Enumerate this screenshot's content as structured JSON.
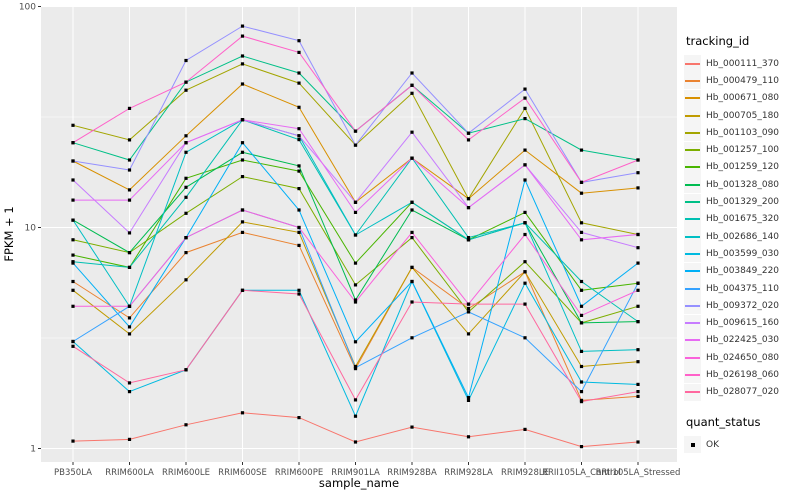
{
  "chart_data": {
    "type": "line",
    "title": "",
    "xlabel": "sample_name",
    "ylabel": "FPKM + 1",
    "y_scale": "log10",
    "ylim": [
      0.9,
      100
    ],
    "y_ticks": [
      1,
      10,
      100
    ],
    "y_minor_ticks": [
      3.1623,
      31.623
    ],
    "grid": true,
    "legend_position": "right",
    "legend_title": "tracking_id",
    "marker": "black-square",
    "categories": [
      "PB350LA",
      "RRIM600LA",
      "RRIM600LE",
      "RRIM600SE",
      "RRIM600PE",
      "RRIM901LA",
      "RRIM928BA",
      "RRIM928LA",
      "RRIM928LE",
      "RRII105LA_Control",
      "RRII105LA_Stressed"
    ],
    "series": [
      {
        "name": "Hb_000111_370",
        "color": "#F8766D",
        "values": [
          1.08,
          1.1,
          1.28,
          1.45,
          1.38,
          1.07,
          1.25,
          1.13,
          1.22,
          1.02,
          1.07
        ]
      },
      {
        "name": "Hb_000479_110",
        "color": "#EA8331",
        "values": [
          5.7,
          3.9,
          7.7,
          9.5,
          8.3,
          2.3,
          6.6,
          4.3,
          6.3,
          1.65,
          1.72
        ]
      },
      {
        "name": "Hb_000671_080",
        "color": "#D89000",
        "values": [
          20,
          14.8,
          26,
          44.6,
          35,
          13.0,
          20.6,
          13.5,
          22.4,
          14.3,
          15.1
        ]
      },
      {
        "name": "Hb_000705_180",
        "color": "#C09B00",
        "values": [
          5.2,
          3.3,
          5.8,
          10.6,
          9.5,
          2.35,
          6.6,
          3.3,
          6.3,
          2.35,
          2.47
        ]
      },
      {
        "name": "Hb_001103_090",
        "color": "#A3A500",
        "values": [
          29,
          24.9,
          41.8,
          55,
          45,
          23.6,
          40.5,
          13.5,
          34.6,
          10.5,
          9.3
        ]
      },
      {
        "name": "Hb_001257_100",
        "color": "#7CAE00",
        "values": [
          8.8,
          7.7,
          11.6,
          17,
          15,
          5.5,
          9.0,
          4.15,
          7.0,
          3.7,
          4.4
        ]
      },
      {
        "name": "Hb_001259_120",
        "color": "#49B500",
        "values": [
          7.5,
          6.6,
          16.7,
          20.2,
          18,
          6.9,
          13.0,
          8.8,
          11.7,
          5.2,
          5.6
        ]
      },
      {
        "name": "Hb_001328_080",
        "color": "#00BC51",
        "values": [
          10.8,
          7.7,
          15.2,
          21.9,
          19,
          4.7,
          12.0,
          8.8,
          10.5,
          3.7,
          3.75
        ]
      },
      {
        "name": "Hb_001329_200",
        "color": "#00C087",
        "values": [
          24.2,
          20.2,
          45.5,
          59.7,
          50,
          27.3,
          44,
          26.7,
          31.1,
          22.4,
          20.2
        ]
      },
      {
        "name": "Hb_001675_320",
        "color": "#00C0B2",
        "values": [
          7.0,
          6.6,
          13.7,
          30.7,
          25,
          9.25,
          20.6,
          9.0,
          10.5,
          5.7,
          3.75
        ]
      },
      {
        "name": "Hb_002686_140",
        "color": "#00BFC4",
        "values": [
          10.8,
          4.4,
          21.9,
          30.7,
          26,
          9.25,
          13.0,
          8.8,
          10.5,
          2.75,
          2.8
        ]
      },
      {
        "name": "Hb_003599_030",
        "color": "#00BAE0",
        "values": [
          3.05,
          1.81,
          2.27,
          5.2,
          5.2,
          1.4,
          5.7,
          1.65,
          5.6,
          2.0,
          1.95
        ]
      },
      {
        "name": "Hb_003849_220",
        "color": "#00B0F6",
        "values": [
          6.9,
          3.55,
          9.0,
          24.2,
          12,
          3.04,
          5.7,
          1.7,
          16.4,
          4.4,
          6.9
        ]
      },
      {
        "name": "Hb_004375_110",
        "color": "#35A2FF",
        "values": [
          3.05,
          4.4,
          9.0,
          12,
          10,
          2.32,
          3.17,
          4.15,
          3.17,
          1.81,
          5.6
        ]
      },
      {
        "name": "Hb_009372_020",
        "color": "#9590FF",
        "values": [
          20,
          18.2,
          57,
          81.5,
          70,
          23.6,
          50,
          26.7,
          42.3,
          16,
          17.7
        ]
      },
      {
        "name": "Hb_009615_160",
        "color": "#C77CFF",
        "values": [
          16.4,
          9.45,
          24.2,
          30.7,
          26,
          13.0,
          27,
          12.3,
          19.2,
          9.5,
          8.1
        ]
      },
      {
        "name": "Hb_022425_030",
        "color": "#E76BF3",
        "values": [
          13.3,
          13.3,
          24.2,
          30.7,
          28,
          11.7,
          20.6,
          12.3,
          19.2,
          8.8,
          9.3
        ]
      },
      {
        "name": "Hb_024650_080",
        "color": "#FA62DB",
        "values": [
          4.4,
          4.4,
          9.0,
          12,
          10,
          4.6,
          9.5,
          4.5,
          9.3,
          4.0,
          5.2
        ]
      },
      {
        "name": "Hb_026198_060",
        "color": "#FF61C9",
        "values": [
          24.2,
          34.6,
          45.5,
          73.5,
          62,
          27.3,
          44,
          24.9,
          38.5,
          16,
          20.2
        ]
      },
      {
        "name": "Hb_028077_020",
        "color": "#FF689F",
        "values": [
          2.9,
          1.98,
          2.27,
          5.2,
          5.0,
          1.66,
          4.6,
          4.5,
          4.5,
          1.63,
          1.81
        ]
      }
    ],
    "quant_status": {
      "title": "quant_status",
      "entries": [
        {
          "label": "OK",
          "marker": "black-square"
        }
      ]
    }
  },
  "axes": {
    "x_title": "sample_name",
    "y_title": "FPKM + 1",
    "y_tick_labels": [
      "100",
      "10",
      "1"
    ]
  },
  "legend": {
    "tracking_title": "tracking_id",
    "quant_title": "quant_status",
    "quant_ok_label": "OK"
  },
  "colors": {
    "panel_bg": "#EBEBEB",
    "grid_major": "#FFFFFF",
    "grid_minor": "#F6F6F6",
    "tick_label": "#4D4D4D",
    "axis_title": "#000000",
    "marker": "#000000"
  }
}
